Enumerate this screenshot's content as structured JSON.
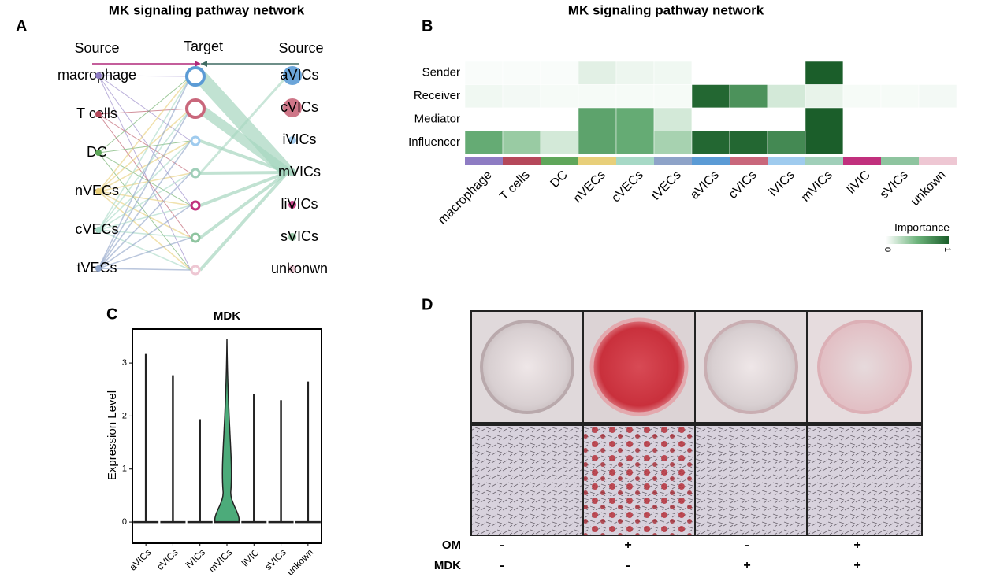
{
  "panels": {
    "A": {
      "label": "A",
      "title": "MK signaling pathway network",
      "left_header": "Source",
      "mid_header": "Target",
      "right_header": "Source",
      "left_nodes": [
        "macrophage",
        "T cells",
        "DC",
        "nVECs",
        "cVECs",
        "tVECs"
      ],
      "left_colors": [
        "#8e7cc3",
        "#b5485a",
        "#5fa65a",
        "#e8cf7a",
        "#a7d9c6",
        "#8ea3c8"
      ],
      "target_colors": [
        "#5b9bd5",
        "#c9677b",
        "#9fcbee",
        "#a0cfb9",
        "#c1307d",
        "#8ec49f",
        "#eec7d3"
      ],
      "right_nodes": [
        "aVICs",
        "cVICs",
        "iVICs",
        "mVICs",
        "liVICs",
        "sVICs",
        "unkonwn"
      ]
    },
    "B": {
      "label": "B",
      "title": "MK signaling pathway network",
      "rows": [
        "Sender",
        "Receiver",
        "Mediator",
        "Influencer"
      ],
      "columns": [
        "macrophage",
        "T cells",
        "DC",
        "nVECs",
        "cVECs",
        "tVECs",
        "aVICs",
        "cVICs",
        "iVICs",
        "mVICs",
        "liVIC",
        "sVICs",
        "unkown"
      ],
      "column_colors": [
        "#8e7cc3",
        "#b5485a",
        "#5fa65a",
        "#e8cf7a",
        "#a7d9c6",
        "#8ea3c8",
        "#5b9bd5",
        "#c9677b",
        "#9fcbee",
        "#a0cfb9",
        "#c1307d",
        "#8ec49f",
        "#eec7d3"
      ],
      "values": [
        [
          0.02,
          0.02,
          0.02,
          0.1,
          0.06,
          0.05,
          0,
          0,
          0,
          1,
          0,
          0,
          0
        ],
        [
          0.05,
          0.04,
          0.03,
          0.03,
          0.03,
          0.03,
          0.95,
          0.7,
          0.15,
          0.08,
          0.03,
          0.03,
          0.04
        ],
        [
          0,
          0,
          0,
          0.6,
          0.55,
          0.15,
          0,
          0,
          0,
          1,
          0,
          0,
          0
        ],
        [
          0.55,
          0.35,
          0.15,
          0.6,
          0.55,
          0.3,
          0.95,
          0.95,
          0.75,
          1,
          0,
          0,
          0
        ]
      ],
      "legend_title": "Importance",
      "legend_ticks": [
        0,
        1
      ]
    },
    "C": {
      "label": "C",
      "title": "MDK",
      "ylabel": "Expression Level",
      "categories": [
        "aVICs",
        "cVICs",
        "iVICs",
        "mVICs",
        "liVIC",
        "sVICs",
        "unkown"
      ],
      "max_values": [
        3.17,
        2.77,
        1.94,
        3.45,
        2.41,
        2.3,
        2.65
      ],
      "highlight_color": "#4cab7a",
      "ylim": [
        -0.4,
        3.64
      ],
      "yticks": [
        0,
        1,
        2,
        3
      ]
    },
    "D": {
      "label": "D",
      "rows": [
        {
          "name": "OM",
          "marks": [
            "-",
            "+",
            "-",
            "+"
          ]
        },
        {
          "name": "MDK",
          "marks": [
            "-",
            "-",
            "+",
            "+"
          ]
        }
      ]
    }
  }
}
